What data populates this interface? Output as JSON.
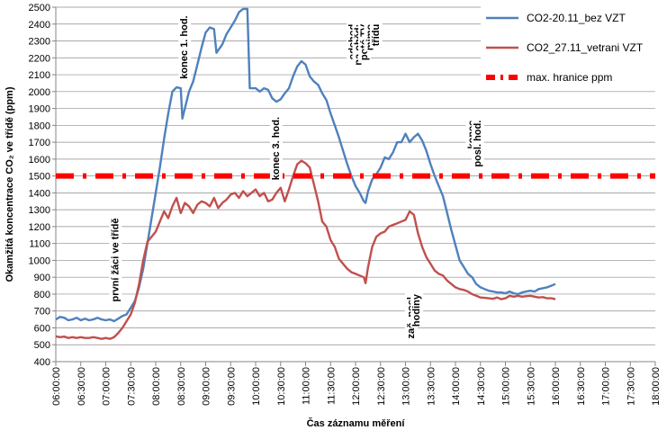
{
  "chart_data": {
    "type": "line",
    "xlabel": "Čas záznamu měření",
    "ylabel": "Okamžitá koncentrace CO₂ ve třídě (ppm)",
    "ylim": [
      400,
      2500
    ],
    "yticks": [
      400,
      500,
      600,
      700,
      800,
      900,
      1000,
      1100,
      1200,
      1300,
      1400,
      1500,
      1600,
      1700,
      1800,
      1900,
      2000,
      2100,
      2200,
      2300,
      2400,
      2500
    ],
    "xlim": [
      "06:00:00",
      "18:00:00"
    ],
    "xticks": [
      "06:00:00",
      "06:30:00",
      "07:00:00",
      "07:30:00",
      "08:00:00",
      "08:30:00",
      "09:00:00",
      "09:30:00",
      "10:00:00",
      "10:30:00",
      "11:00:00",
      "11:30:00",
      "12:00:00",
      "12:30:00",
      "13:00:00",
      "13:30:00",
      "14:00:00",
      "14:30:00",
      "15:00:00",
      "15:30:00",
      "16:00:00",
      "16:30:00",
      "17:00:00",
      "17:30:00",
      "18:00:00"
    ],
    "grid": "horizontal",
    "legend_position": "top-right",
    "series": [
      {
        "name": "CO2-20.11_bez VZT",
        "color": "#4f81bd",
        "style": "solid",
        "points": [
          [
            "06:00:00",
            650
          ],
          [
            "06:05:00",
            665
          ],
          [
            "06:10:00",
            660
          ],
          [
            "06:15:00",
            645
          ],
          [
            "06:20:00",
            650
          ],
          [
            "06:25:00",
            660
          ],
          [
            "06:30:00",
            645
          ],
          [
            "06:35:00",
            655
          ],
          [
            "06:40:00",
            645
          ],
          [
            "06:45:00",
            650
          ],
          [
            "06:50:00",
            660
          ],
          [
            "06:55:00",
            650
          ],
          [
            "07:00:00",
            645
          ],
          [
            "07:05:00",
            650
          ],
          [
            "07:10:00",
            640
          ],
          [
            "07:15:00",
            655
          ],
          [
            "07:20:00",
            670
          ],
          [
            "07:25:00",
            680
          ],
          [
            "07:30:00",
            720
          ],
          [
            "07:35:00",
            760
          ],
          [
            "07:40:00",
            840
          ],
          [
            "07:45:00",
            950
          ],
          [
            "07:50:00",
            1100
          ],
          [
            "07:55:00",
            1250
          ],
          [
            "08:00:00",
            1400
          ],
          [
            "08:05:00",
            1550
          ],
          [
            "08:10:00",
            1720
          ],
          [
            "08:15:00",
            1870
          ],
          [
            "08:20:00",
            2000
          ],
          [
            "08:25:00",
            2025
          ],
          [
            "08:30:00",
            2020
          ],
          [
            "08:32:00",
            1840
          ],
          [
            "08:37:00",
            1940
          ],
          [
            "08:40:00",
            2000
          ],
          [
            "08:45:00",
            2060
          ],
          [
            "08:50:00",
            2160
          ],
          [
            "08:55:00",
            2260
          ],
          [
            "09:00:00",
            2350
          ],
          [
            "09:05:00",
            2380
          ],
          [
            "09:10:00",
            2370
          ],
          [
            "09:13:00",
            2230
          ],
          [
            "09:20:00",
            2280
          ],
          [
            "09:25:00",
            2340
          ],
          [
            "09:30:00",
            2380
          ],
          [
            "09:35:00",
            2420
          ],
          [
            "09:40:00",
            2470
          ],
          [
            "09:45:00",
            2490
          ],
          [
            "09:50:00",
            2490
          ],
          [
            "09:53:00",
            2020
          ],
          [
            "10:00:00",
            2020
          ],
          [
            "10:05:00",
            2000
          ],
          [
            "10:10:00",
            2020
          ],
          [
            "10:15:00",
            2010
          ],
          [
            "10:20:00",
            1960
          ],
          [
            "10:25:00",
            1940
          ],
          [
            "10:30:00",
            1955
          ],
          [
            "10:35:00",
            1990
          ],
          [
            "10:40:00",
            2020
          ],
          [
            "10:45:00",
            2090
          ],
          [
            "10:50:00",
            2150
          ],
          [
            "10:55:00",
            2180
          ],
          [
            "11:00:00",
            2160
          ],
          [
            "11:05:00",
            2090
          ],
          [
            "11:10:00",
            2060
          ],
          [
            "11:15:00",
            2040
          ],
          [
            "11:20:00",
            1990
          ],
          [
            "11:25:00",
            1950
          ],
          [
            "11:30:00",
            1870
          ],
          [
            "11:35:00",
            1800
          ],
          [
            "11:40:00",
            1730
          ],
          [
            "11:45:00",
            1650
          ],
          [
            "11:50:00",
            1570
          ],
          [
            "11:55:00",
            1500
          ],
          [
            "12:00:00",
            1440
          ],
          [
            "12:05:00",
            1400
          ],
          [
            "12:10:00",
            1350
          ],
          [
            "12:12:00",
            1340
          ],
          [
            "12:15:00",
            1410
          ],
          [
            "12:20:00",
            1480
          ],
          [
            "12:25:00",
            1510
          ],
          [
            "12:30:00",
            1550
          ],
          [
            "12:35:00",
            1610
          ],
          [
            "12:40:00",
            1600
          ],
          [
            "12:45:00",
            1640
          ],
          [
            "12:50:00",
            1700
          ],
          [
            "12:55:00",
            1700
          ],
          [
            "13:00:00",
            1750
          ],
          [
            "13:03:00",
            1720
          ],
          [
            "13:05:00",
            1700
          ],
          [
            "13:10:00",
            1730
          ],
          [
            "13:15:00",
            1750
          ],
          [
            "13:20:00",
            1710
          ],
          [
            "13:25:00",
            1650
          ],
          [
            "13:30:00",
            1570
          ],
          [
            "13:35:00",
            1500
          ],
          [
            "13:40:00",
            1440
          ],
          [
            "13:45:00",
            1380
          ],
          [
            "13:50:00",
            1280
          ],
          [
            "13:55:00",
            1180
          ],
          [
            "14:00:00",
            1090
          ],
          [
            "14:05:00",
            1000
          ],
          [
            "14:10:00",
            960
          ],
          [
            "14:15:00",
            920
          ],
          [
            "14:20:00",
            900
          ],
          [
            "14:25:00",
            860
          ],
          [
            "14:30:00",
            840
          ],
          [
            "14:35:00",
            830
          ],
          [
            "14:40:00",
            820
          ],
          [
            "14:45:00",
            815
          ],
          [
            "14:50:00",
            810
          ],
          [
            "14:55:00",
            810
          ],
          [
            "15:00:00",
            805
          ],
          [
            "15:05:00",
            815
          ],
          [
            "15:10:00",
            805
          ],
          [
            "15:15:00",
            800
          ],
          [
            "15:20:00",
            810
          ],
          [
            "15:25:00",
            815
          ],
          [
            "15:30:00",
            820
          ],
          [
            "15:35:00",
            815
          ],
          [
            "15:40:00",
            830
          ],
          [
            "15:45:00",
            835
          ],
          [
            "15:50:00",
            840
          ],
          [
            "15:55:00",
            850
          ],
          [
            "16:00:00",
            860
          ]
        ]
      },
      {
        "name": "CO2_27.11_vetrani VZT",
        "color": "#c0504d",
        "style": "solid",
        "points": [
          [
            "06:00:00",
            550
          ],
          [
            "06:05:00",
            545
          ],
          [
            "06:10:00",
            548
          ],
          [
            "06:15:00",
            540
          ],
          [
            "06:20:00",
            545
          ],
          [
            "06:25:00",
            540
          ],
          [
            "06:30:00",
            545
          ],
          [
            "06:35:00",
            540
          ],
          [
            "06:40:00",
            540
          ],
          [
            "06:45:00",
            545
          ],
          [
            "06:50:00",
            540
          ],
          [
            "06:55:00",
            535
          ],
          [
            "07:00:00",
            540
          ],
          [
            "07:05:00",
            535
          ],
          [
            "07:10:00",
            545
          ],
          [
            "07:15:00",
            570
          ],
          [
            "07:20:00",
            600
          ],
          [
            "07:25:00",
            640
          ],
          [
            "07:30:00",
            680
          ],
          [
            "07:35:00",
            750
          ],
          [
            "07:40:00",
            860
          ],
          [
            "07:45:00",
            1000
          ],
          [
            "07:50:00",
            1110
          ],
          [
            "07:55:00",
            1140
          ],
          [
            "08:00:00",
            1170
          ],
          [
            "08:05:00",
            1230
          ],
          [
            "08:10:00",
            1290
          ],
          [
            "08:15:00",
            1250
          ],
          [
            "08:20:00",
            1320
          ],
          [
            "08:25:00",
            1370
          ],
          [
            "08:30:00",
            1280
          ],
          [
            "08:35:00",
            1340
          ],
          [
            "08:40:00",
            1320
          ],
          [
            "08:45:00",
            1280
          ],
          [
            "08:50:00",
            1330
          ],
          [
            "08:55:00",
            1350
          ],
          [
            "09:00:00",
            1340
          ],
          [
            "09:05:00",
            1320
          ],
          [
            "09:10:00",
            1370
          ],
          [
            "09:15:00",
            1310
          ],
          [
            "09:20:00",
            1340
          ],
          [
            "09:25:00",
            1360
          ],
          [
            "09:30:00",
            1390
          ],
          [
            "09:35:00",
            1400
          ],
          [
            "09:40:00",
            1370
          ],
          [
            "09:45:00",
            1410
          ],
          [
            "09:50:00",
            1380
          ],
          [
            "09:55:00",
            1400
          ],
          [
            "10:00:00",
            1420
          ],
          [
            "10:05:00",
            1380
          ],
          [
            "10:10:00",
            1400
          ],
          [
            "10:15:00",
            1350
          ],
          [
            "10:20:00",
            1360
          ],
          [
            "10:25:00",
            1400
          ],
          [
            "10:30:00",
            1430
          ],
          [
            "10:35:00",
            1350
          ],
          [
            "10:40:00",
            1420
          ],
          [
            "10:45:00",
            1500
          ],
          [
            "10:50:00",
            1570
          ],
          [
            "10:55:00",
            1590
          ],
          [
            "11:00:00",
            1575
          ],
          [
            "11:05:00",
            1550
          ],
          [
            "11:10:00",
            1450
          ],
          [
            "11:15:00",
            1350
          ],
          [
            "11:20:00",
            1230
          ],
          [
            "11:25:00",
            1200
          ],
          [
            "11:30:00",
            1120
          ],
          [
            "11:35:00",
            1080
          ],
          [
            "11:40:00",
            1010
          ],
          [
            "11:45:00",
            980
          ],
          [
            "11:50:00",
            950
          ],
          [
            "11:55:00",
            930
          ],
          [
            "12:00:00",
            920
          ],
          [
            "12:05:00",
            910
          ],
          [
            "12:10:00",
            900
          ],
          [
            "12:12:00",
            865
          ],
          [
            "12:15:00",
            960
          ],
          [
            "12:20:00",
            1080
          ],
          [
            "12:25:00",
            1140
          ],
          [
            "12:30:00",
            1160
          ],
          [
            "12:35:00",
            1170
          ],
          [
            "12:40:00",
            1200
          ],
          [
            "12:45:00",
            1210
          ],
          [
            "12:50:00",
            1220
          ],
          [
            "12:55:00",
            1230
          ],
          [
            "13:00:00",
            1240
          ],
          [
            "13:05:00",
            1290
          ],
          [
            "13:10:00",
            1270
          ],
          [
            "13:15:00",
            1160
          ],
          [
            "13:20:00",
            1080
          ],
          [
            "13:25:00",
            1020
          ],
          [
            "13:30:00",
            980
          ],
          [
            "13:35:00",
            940
          ],
          [
            "13:40:00",
            920
          ],
          [
            "13:45:00",
            910
          ],
          [
            "13:50:00",
            880
          ],
          [
            "13:55:00",
            860
          ],
          [
            "14:00:00",
            840
          ],
          [
            "14:05:00",
            830
          ],
          [
            "14:10:00",
            825
          ],
          [
            "14:15:00",
            815
          ],
          [
            "14:20:00",
            800
          ],
          [
            "14:25:00",
            790
          ],
          [
            "14:30:00",
            780
          ],
          [
            "14:35:00",
            778
          ],
          [
            "14:40:00",
            775
          ],
          [
            "14:45:00",
            772
          ],
          [
            "14:50:00",
            780
          ],
          [
            "14:55:00",
            770
          ],
          [
            "15:00:00",
            775
          ],
          [
            "15:05:00",
            790
          ],
          [
            "15:10:00",
            785
          ],
          [
            "15:15:00",
            790
          ],
          [
            "15:20:00",
            785
          ],
          [
            "15:25:00",
            788
          ],
          [
            "15:30:00",
            790
          ],
          [
            "15:35:00",
            785
          ],
          [
            "15:40:00",
            780
          ],
          [
            "15:45:00",
            782
          ],
          [
            "15:50:00",
            775
          ],
          [
            "15:55:00",
            775
          ],
          [
            "16:00:00",
            770
          ]
        ]
      },
      {
        "name": "max. hranice ppm",
        "color": "#ff0000",
        "style": "dash-dot",
        "points": [
          [
            "06:00:00",
            1500
          ],
          [
            "18:00:00",
            1500
          ]
        ]
      }
    ],
    "annotations": [
      {
        "text": "první žáci  ve třídě",
        "x": "07:15:00",
        "y": 1250
      },
      {
        "text": "konec 1. hod.",
        "x": "08:38:00",
        "y": 2450
      },
      {
        "text": "konec 3. hod.",
        "x": "10:28:00",
        "y": 1850
      },
      {
        "text": "odchod",
        "x": "12:00:00",
        "y": 2400
      },
      {
        "text": "na oběd;",
        "x": "12:07:00",
        "y": 2400
      },
      {
        "text": "poté TV",
        "x": "12:14:00",
        "y": 2400
      },
      {
        "text": "mimo",
        "x": "12:21:00",
        "y": 2400
      },
      {
        "text": "třídu",
        "x": "12:28:00",
        "y": 2400
      },
      {
        "text": "zač. posl.",
        "x": "13:10:00",
        "y": 800
      },
      {
        "text": "hodiny",
        "x": "13:17:00",
        "y": 800
      },
      {
        "text": "konec",
        "x": "14:23:00",
        "y": 1830
      },
      {
        "text": "posl. hod.",
        "x": "14:30:00",
        "y": 1830
      }
    ]
  }
}
